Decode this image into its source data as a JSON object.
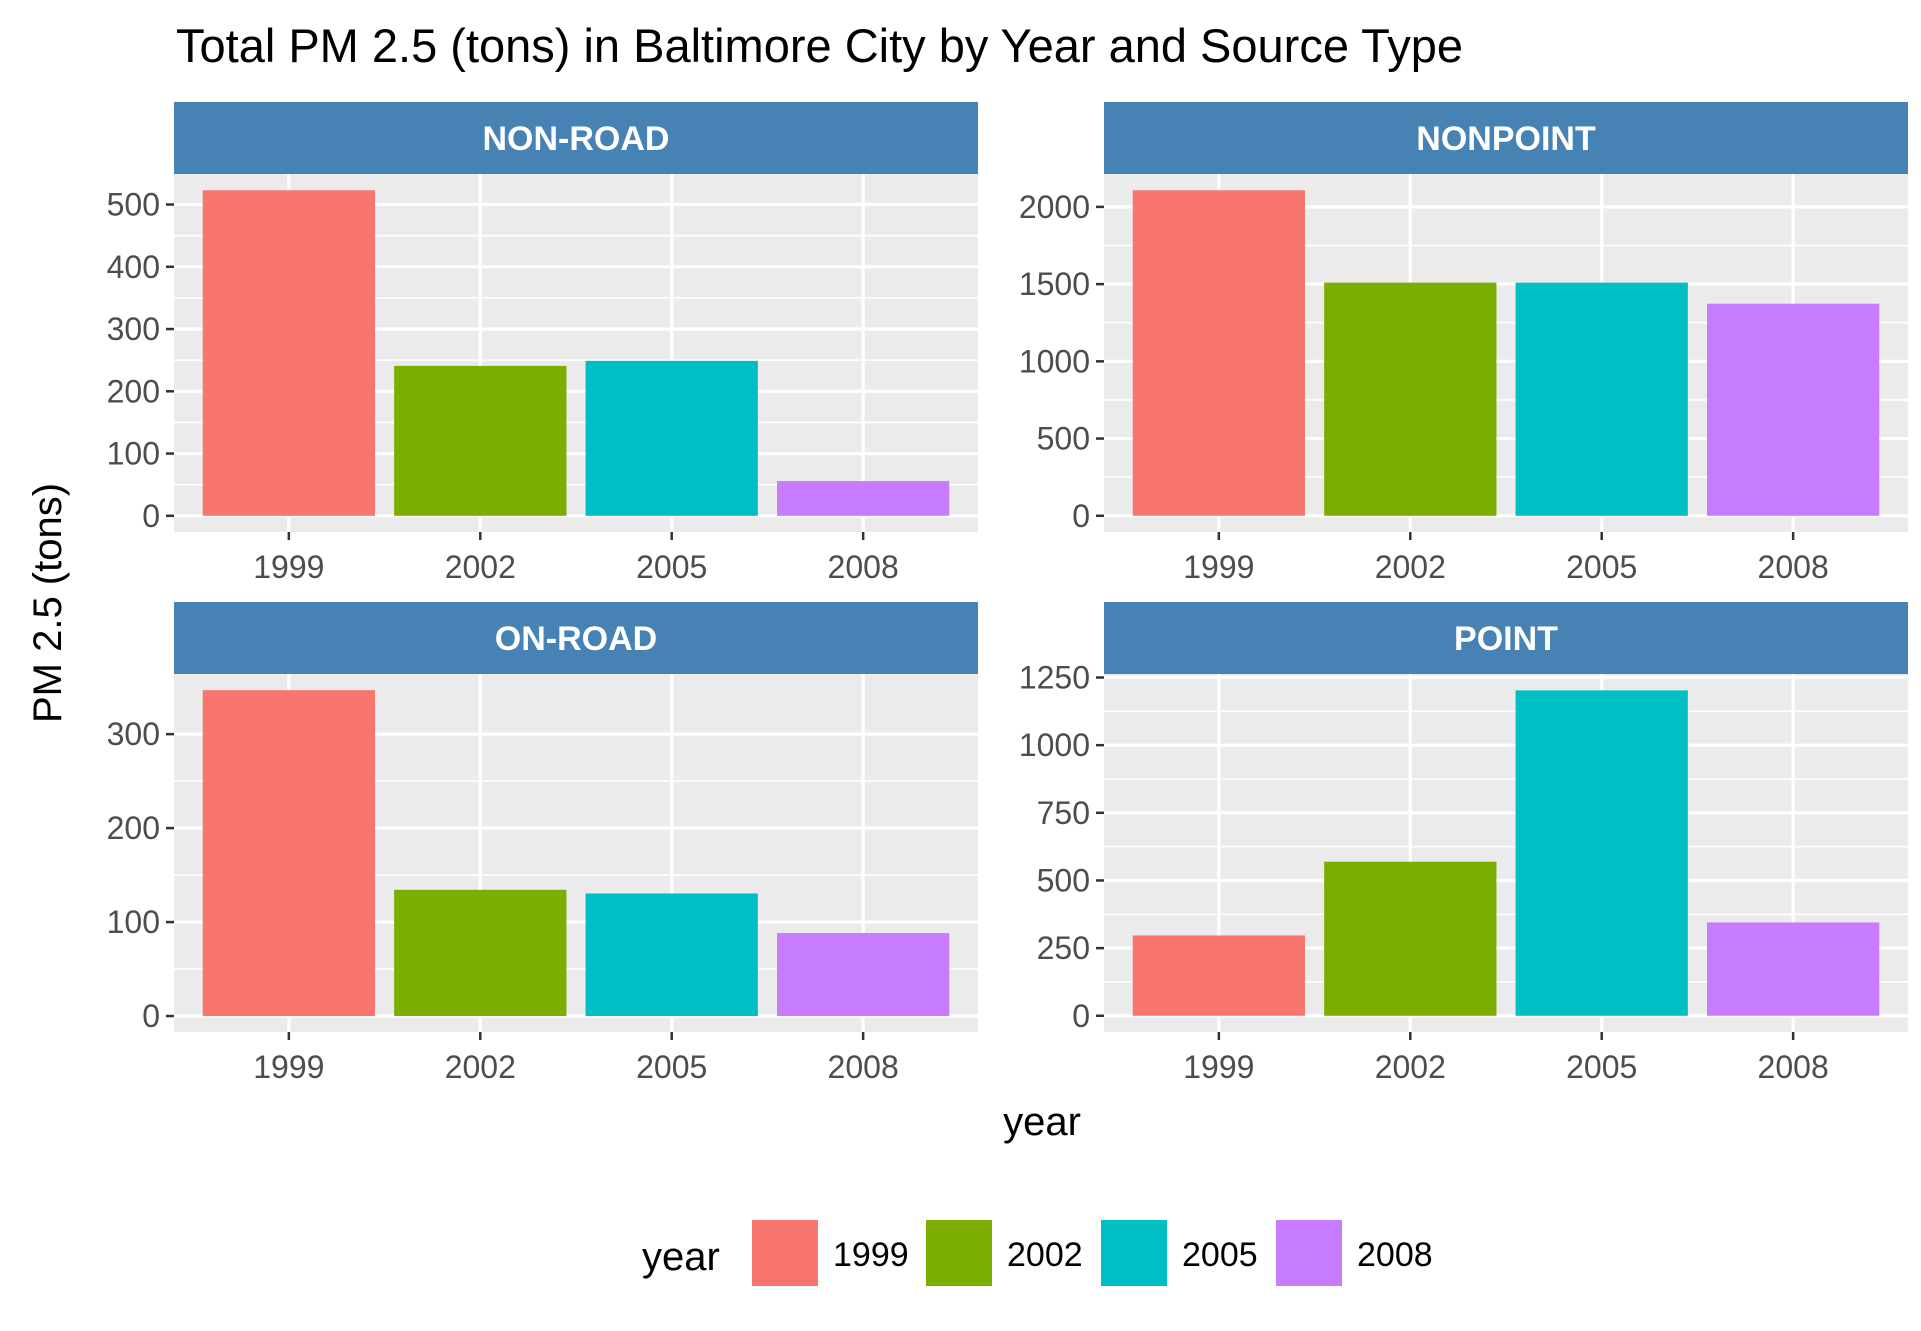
{
  "chart_data": {
    "type": "bar",
    "title": "Total PM 2.5 (tons) in Baltimore City by Year and Source Type",
    "xlabel": "year",
    "ylabel": "PM 2.5 (tons)",
    "categories": [
      "1999",
      "2002",
      "2005",
      "2008"
    ],
    "colors": [
      "#F8766D",
      "#7CAE00",
      "#00BFC4",
      "#C77CFF"
    ],
    "strip_color": "#4682B4",
    "panel_background": "#EBEBEB",
    "grid": true,
    "legend": {
      "title": "year",
      "position": "bottom",
      "entries": [
        "1999",
        "2002",
        "2005",
        "2008"
      ]
    },
    "panels": [
      {
        "name": "NON-ROAD",
        "values": [
          522.9,
          240.8,
          248.9,
          55.8
        ],
        "ylim": [
          -26,
          549
        ],
        "yticks": [
          0,
          100,
          200,
          300,
          400,
          500
        ]
      },
      {
        "name": "NONPOINT",
        "values": [
          2107.6,
          1509.5,
          1509.5,
          1373.2
        ],
        "ylim": [
          -105,
          2213
        ],
        "yticks": [
          0,
          500,
          1000,
          1500,
          2000
        ]
      },
      {
        "name": "ON-ROAD",
        "values": [
          346.8,
          134.3,
          130.4,
          88.3
        ],
        "ylim": [
          -17,
          364
        ],
        "yticks": [
          0,
          100,
          200,
          300
        ]
      },
      {
        "name": "POINT",
        "values": [
          296.8,
          569.3,
          1202.5,
          344.98
        ],
        "ylim": [
          -60,
          1263
        ],
        "yticks": [
          0,
          250,
          500,
          750,
          1000,
          1250
        ]
      }
    ]
  }
}
